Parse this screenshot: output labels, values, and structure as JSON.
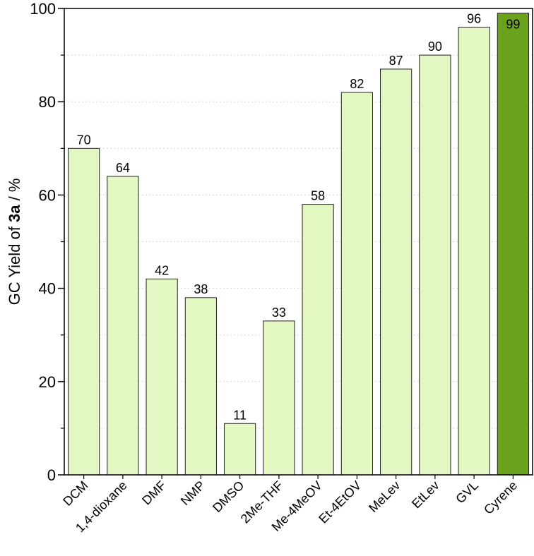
{
  "chart_data": {
    "type": "bar",
    "title": "",
    "ylabel_prefix": "GC Yield of ",
    "ylabel_bold": "3a",
    "ylabel_suffix": " / %",
    "xlabel": "",
    "ylim": [
      0,
      100
    ],
    "yticks": [
      "0",
      "20",
      "40",
      "60",
      "80",
      "100"
    ],
    "grid": "horizontal dotted",
    "categories": [
      "DCM",
      "1,4-dioxane",
      "DMF",
      "NMP",
      "DMSO",
      "2Me-THF",
      "Me-4MeOV",
      "Et-4EtOV",
      "MeLev",
      "EtLev",
      "GVL",
      "Cyrene"
    ],
    "values": [
      70,
      64,
      42,
      38,
      11,
      33,
      58,
      82,
      87,
      90,
      96,
      99
    ],
    "value_labels": [
      "70",
      "64",
      "42",
      "38",
      "11",
      "33",
      "58",
      "82",
      "87",
      "90",
      "96",
      "99"
    ],
    "colors": {
      "bar": "#e2f7c2",
      "highlight_bar": "#6aa21e",
      "highlight_category": "Cyrene",
      "bar_edge": "#222222",
      "grid": "#d6d6d6"
    }
  }
}
